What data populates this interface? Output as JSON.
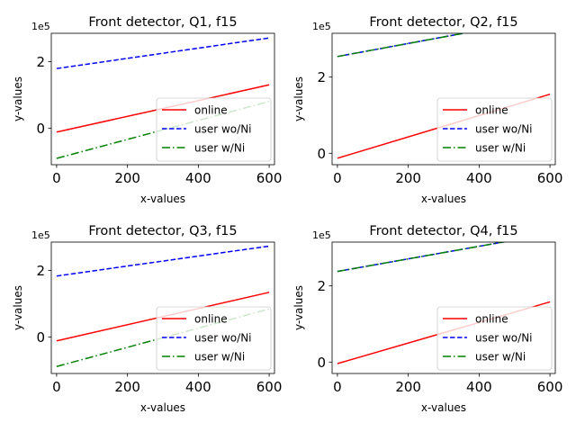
{
  "chart_data": [
    {
      "type": "line",
      "title": "Front detector, Q1, f15",
      "xlabel": "x-values",
      "ylabel": "y-values",
      "offset_text": "1e5",
      "xlim": [
        -15,
        615
      ],
      "ylim": [
        -1.1,
        2.85
      ],
      "xticks": [
        0,
        200,
        400,
        600
      ],
      "xtick_labels": [
        "0",
        "200",
        "400",
        "600"
      ],
      "yticks": [
        0,
        2
      ],
      "ytick_labels": [
        "0",
        "2"
      ],
      "legend_position": "lower-right",
      "series": [
        {
          "name": "online",
          "color": "#ff0000",
          "style": "solid",
          "x": [
            0,
            600
          ],
          "y": [
            -0.12,
            1.3
          ]
        },
        {
          "name": "user wo/Ni",
          "color": "#0000ff",
          "style": "dashed",
          "x": [
            0,
            600
          ],
          "y": [
            1.79,
            2.71
          ]
        },
        {
          "name": "user w/Ni",
          "color": "#008000",
          "style": "dashdot",
          "x": [
            0,
            600
          ],
          "y": [
            -0.91,
            0.8
          ]
        }
      ]
    },
    {
      "type": "line",
      "title": "Front detector, Q2, f15",
      "xlabel": "x-values",
      "ylabel": "y-values",
      "offset_text": "1e5",
      "xlim": [
        -15,
        615
      ],
      "ylim": [
        -0.3,
        3.15
      ],
      "xticks": [
        0,
        200,
        400,
        600
      ],
      "xtick_labels": [
        "0",
        "200",
        "400",
        "600"
      ],
      "yticks": [
        0,
        2
      ],
      "ytick_labels": [
        "0",
        "2"
      ],
      "legend_position": "lower-right",
      "series": [
        {
          "name": "online",
          "color": "#ff0000",
          "style": "solid",
          "x": [
            0,
            600
          ],
          "y": [
            -0.13,
            1.55
          ]
        },
        {
          "name": "user wo/Ni",
          "color": "#0000ff",
          "style": "dashed",
          "x": [
            0,
            600
          ],
          "y": [
            2.54,
            3.57
          ]
        },
        {
          "name": "user w/Ni",
          "color": "#008000",
          "style": "dashdot",
          "x": [
            0,
            600
          ],
          "y": [
            2.54,
            3.57
          ]
        }
      ]
    },
    {
      "type": "line",
      "title": "Front detector, Q3, f15",
      "xlabel": "x-values",
      "ylabel": "y-values",
      "offset_text": "1e5",
      "xlim": [
        -15,
        615
      ],
      "ylim": [
        -1.1,
        2.85
      ],
      "xticks": [
        0,
        200,
        400,
        600
      ],
      "xtick_labels": [
        "0",
        "200",
        "400",
        "600"
      ],
      "yticks": [
        0,
        2
      ],
      "ytick_labels": [
        "0",
        "2"
      ],
      "legend_position": "lower-right",
      "series": [
        {
          "name": "online",
          "color": "#ff0000",
          "style": "solid",
          "x": [
            0,
            600
          ],
          "y": [
            -0.12,
            1.34
          ]
        },
        {
          "name": "user wo/Ni",
          "color": "#0000ff",
          "style": "dashed",
          "x": [
            0,
            600
          ],
          "y": [
            1.83,
            2.73
          ]
        },
        {
          "name": "user w/Ni",
          "color": "#008000",
          "style": "dashdot",
          "x": [
            0,
            600
          ],
          "y": [
            -0.89,
            0.84
          ]
        }
      ]
    },
    {
      "type": "line",
      "title": "Front detector, Q4, f15",
      "xlabel": "x-values",
      "ylabel": "y-values",
      "offset_text": "1e5",
      "xlim": [
        -15,
        615
      ],
      "ylim": [
        -0.3,
        3.15
      ],
      "xticks": [
        0,
        200,
        400,
        600
      ],
      "xtick_labels": [
        "0",
        "200",
        "400",
        "600"
      ],
      "yticks": [
        0,
        2
      ],
      "ytick_labels": [
        "0",
        "2"
      ],
      "legend_position": "lower-right",
      "series": [
        {
          "name": "online",
          "color": "#ff0000",
          "style": "solid",
          "x": [
            0,
            600
          ],
          "y": [
            -0.04,
            1.58
          ]
        },
        {
          "name": "user wo/Ni",
          "color": "#0000ff",
          "style": "dashed",
          "x": [
            0,
            600
          ],
          "y": [
            2.38,
            3.37
          ]
        },
        {
          "name": "user w/Ni",
          "color": "#008000",
          "style": "dashdot",
          "x": [
            0,
            600
          ],
          "y": [
            2.38,
            3.37
          ]
        }
      ]
    }
  ]
}
